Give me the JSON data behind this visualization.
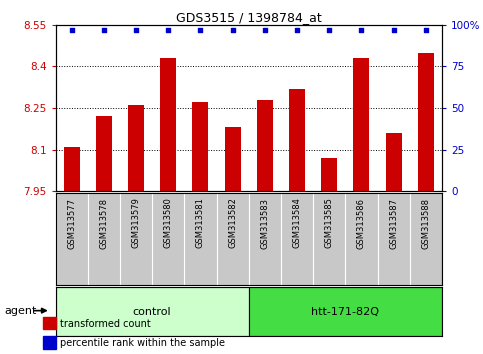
{
  "title": "GDS3515 / 1398784_at",
  "samples": [
    "GSM313577",
    "GSM313578",
    "GSM313579",
    "GSM313580",
    "GSM313581",
    "GSM313582",
    "GSM313583",
    "GSM313584",
    "GSM313585",
    "GSM313586",
    "GSM313587",
    "GSM313588"
  ],
  "bar_values": [
    8.11,
    8.22,
    8.26,
    8.43,
    8.27,
    8.18,
    8.28,
    8.32,
    8.07,
    8.43,
    8.16,
    8.45
  ],
  "percentile_values": [
    97,
    97,
    97,
    97,
    97,
    97,
    97,
    97,
    97,
    97,
    97,
    97
  ],
  "bar_color": "#cc0000",
  "percentile_color": "#0000cc",
  "ylim_left": [
    7.95,
    8.55
  ],
  "ylim_right": [
    0,
    100
  ],
  "yticks_left": [
    7.95,
    8.1,
    8.25,
    8.4,
    8.55
  ],
  "yticks_right": [
    0,
    25,
    50,
    75,
    100
  ],
  "ytick_labels_left": [
    "7.95",
    "8.1",
    "8.25",
    "8.4",
    "8.55"
  ],
  "ytick_labels_right": [
    "0",
    "25",
    "50",
    "75",
    "100%"
  ],
  "gridlines": [
    8.1,
    8.25,
    8.4
  ],
  "groups": [
    {
      "label": "control",
      "start": 0,
      "end": 6,
      "color": "#ccffcc"
    },
    {
      "label": "htt-171-82Q",
      "start": 6,
      "end": 12,
      "color": "#44dd44"
    }
  ],
  "agent_label": "agent",
  "legend_items": [
    {
      "label": "transformed count",
      "color": "#cc0000"
    },
    {
      "label": "percentile rank within the sample",
      "color": "#0000cc"
    }
  ],
  "bar_width": 0.5,
  "bg_color": "#ffffff",
  "tick_area_color": "#c8c8c8"
}
